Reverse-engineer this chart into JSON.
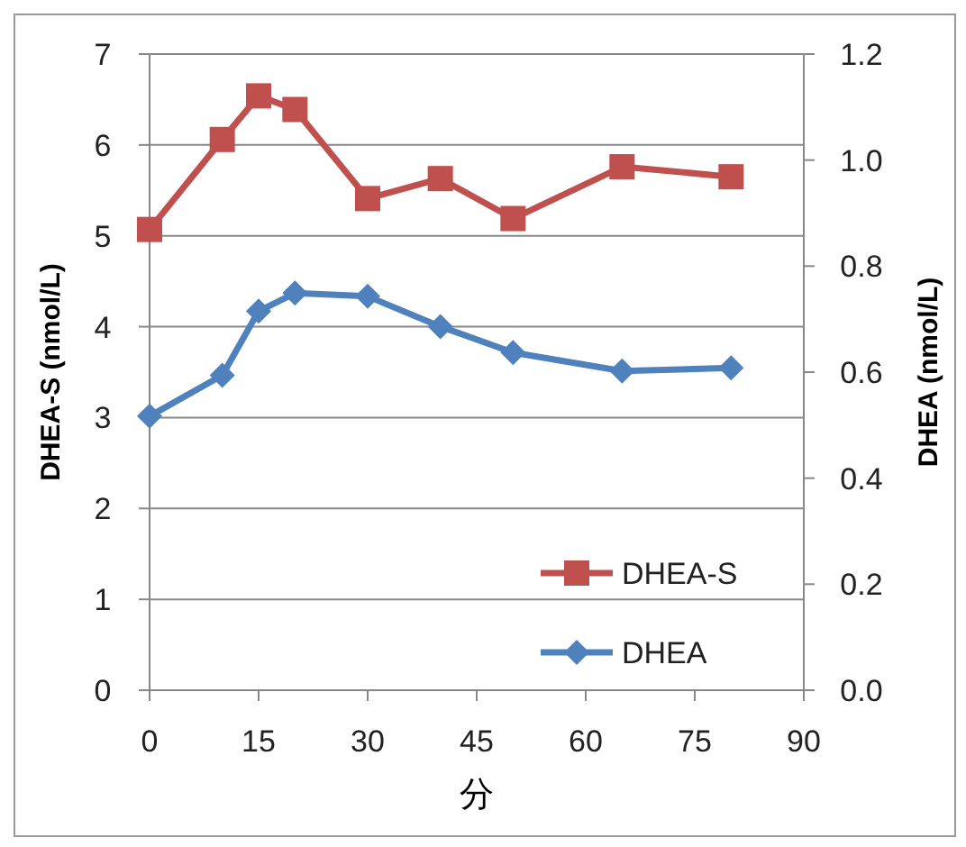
{
  "chart_data": {
    "type": "line",
    "xlabel": "分",
    "ylabel": "DHEA-S (nmol/L)",
    "y2label": "DHEA (nmol/L)",
    "xlim": [
      0,
      90
    ],
    "xticks": [
      0,
      15,
      30,
      45,
      60,
      75,
      90
    ],
    "ylim": [
      0,
      7
    ],
    "yticks": [
      0,
      1,
      2,
      3,
      4,
      5,
      6,
      7
    ],
    "y2lim": [
      0,
      1.2
    ],
    "y2ticks": [
      {
        "value": 0,
        "label": "0.0"
      },
      {
        "value": 0.2,
        "label": "0.2"
      },
      {
        "value": 0.4,
        "label": "0.4"
      },
      {
        "value": 0.6,
        "label": "0.6"
      },
      {
        "value": 0.8,
        "label": "0.8"
      },
      {
        "value": 1,
        "label": "1.0"
      },
      {
        "value": 1.2,
        "label": "1.2"
      }
    ],
    "grid": "y",
    "legend": "bottom right",
    "series": [
      {
        "name": "DHEA-S",
        "color": "#c0504d",
        "marker": "square",
        "x": [
          0,
          10,
          15,
          20,
          30,
          40,
          50,
          65,
          80
        ],
        "values": [
          5.07,
          6.06,
          6.54,
          6.39,
          5.41,
          5.63,
          5.19,
          5.76,
          5.65
        ]
      },
      {
        "name": "DHEA",
        "color": "#4f81bd",
        "marker": "diamond",
        "axis": "y2",
        "x": [
          0,
          10,
          15,
          20,
          30,
          40,
          50,
          65,
          80
        ],
        "values": [
          0.517,
          0.594,
          0.715,
          0.749,
          0.743,
          0.686,
          0.637,
          0.602,
          0.608
        ]
      }
    ]
  }
}
